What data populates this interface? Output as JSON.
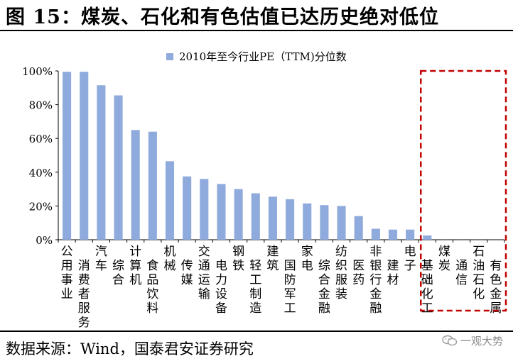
{
  "header": {
    "title": "图 15：煤炭、石化和有色估值已达历史绝对低位"
  },
  "footer": {
    "source": "数据来源：Wind，国泰君安证券研究",
    "watermark": "一观大势"
  },
  "colors": {
    "bar": "#8faadc",
    "highlight_box": "#c00000"
  },
  "chart_data": {
    "type": "bar",
    "title": "",
    "xlabel": "",
    "ylabel": "",
    "ylim": [
      0,
      100
    ],
    "y_ticks": [
      "0%",
      "20%",
      "40%",
      "60%",
      "80%",
      "100%"
    ],
    "grid": false,
    "legend_position": "top",
    "series": [
      {
        "name": "2010年至今行业PE（TTM)分位数",
        "values": [
          99.5,
          99.5,
          91.5,
          85.5,
          65,
          64,
          46.5,
          37.5,
          36,
          33,
          30,
          27.5,
          25.5,
          24,
          21.5,
          20.5,
          20,
          14,
          6.5,
          6,
          6,
          2.5,
          0,
          0,
          0,
          0
        ]
      }
    ],
    "categories": [
      "公用事业",
      "消费者服务",
      "汽车",
      "综合",
      "计算机",
      "食品饮料",
      "机械",
      "传媒",
      "交通运输",
      "电力设备",
      "钢铁",
      "轻工制造",
      "建筑",
      "国防军工",
      "家电",
      "综合金融",
      "纺织服装",
      "医药",
      "非银行金融",
      "建材",
      "电子",
      "基础化工",
      "煤炭",
      "通信",
      "石油石化",
      "有色金属"
    ],
    "highlighted_categories": [
      "基础化工",
      "煤炭",
      "通信",
      "石油石化",
      "有色金属"
    ]
  }
}
